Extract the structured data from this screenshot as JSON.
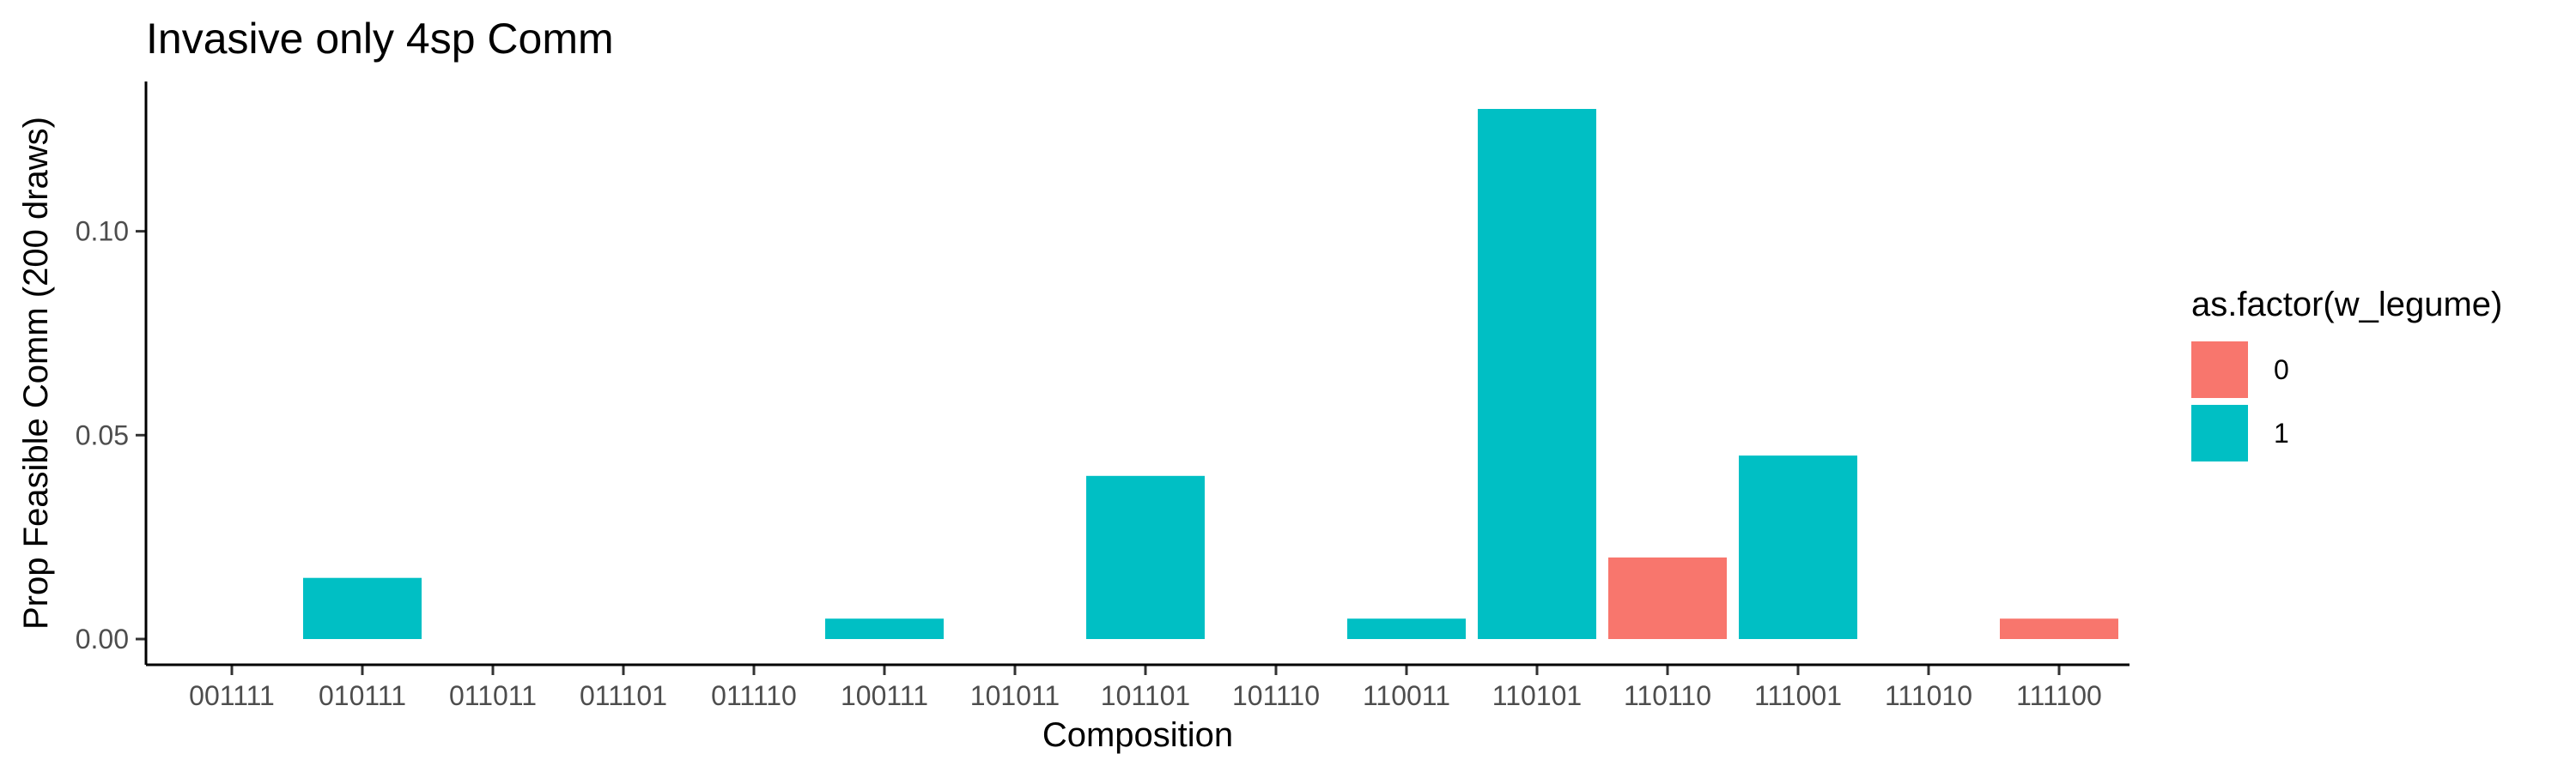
{
  "chart_data": {
    "type": "bar",
    "title": "Invasive only 4sp Comm",
    "xlabel": "Composition",
    "ylabel": "Prop Feasible Comm (200 draws)",
    "categories": [
      "001111",
      "010111",
      "011011",
      "011101",
      "011110",
      "100111",
      "101011",
      "101101",
      "101110",
      "110011",
      "110101",
      "110110",
      "111001",
      "111010",
      "111100"
    ],
    "values": [
      0,
      0.015,
      0,
      0,
      0,
      0.005,
      0,
      0.04,
      0,
      0.005,
      0.13,
      0.02,
      0.045,
      0,
      0.005
    ],
    "groups": [
      "1",
      "1",
      "1",
      "1",
      "1",
      "1",
      "1",
      "1",
      "1",
      "1",
      "1",
      "0",
      "1",
      "1",
      "0"
    ],
    "ylim": [
      0,
      0.135
    ],
    "yticks": [
      0.0,
      0.05,
      0.1
    ],
    "ytick_labels": [
      "0.00",
      "0.05",
      "0.10"
    ],
    "grid": false,
    "legend": {
      "title": "as.factor(w_legume)",
      "placement": "right",
      "entries": [
        {
          "label": "0",
          "color": "#F8766D"
        },
        {
          "label": "1",
          "color": "#00BFC4"
        }
      ]
    }
  }
}
